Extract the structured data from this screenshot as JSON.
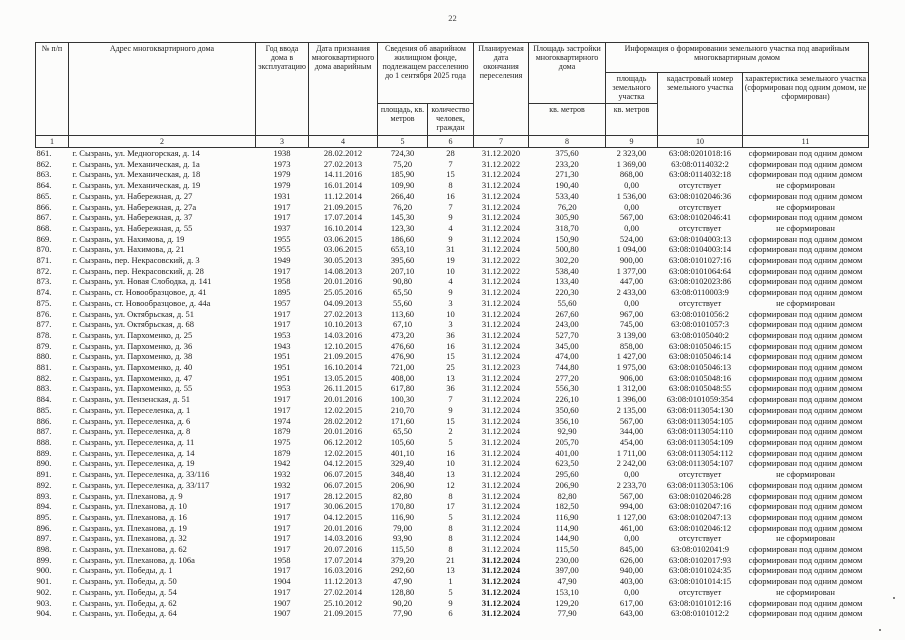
{
  "page": {
    "number": "22"
  },
  "table": {
    "headers": {
      "num": "№ п/п",
      "address": "Адрес многоквартирного дома",
      "year_built": "Год ввода дома в эксплуатацию",
      "date_recognized": "Дата признания многоквартирного дома аварийным",
      "fund_group": "Сведения об аварийном жилищном фонде, подлежащем расселению до 1 сентября 2025 года",
      "fund_area": "площадь, кв. метров",
      "fund_people": "количество человек, граждан",
      "plan_date": "Планируемая дата окончания переселения",
      "building_area": "Площадь застройки многоквартирного дома",
      "building_area_unit": "кв. метров",
      "land_group": "Информация о формировании земельного участка под аварийным многоквартирным домом",
      "land_area": "площадь земельного участка",
      "land_area_unit": "кв. метров",
      "cadastral_number": "кадастровый номер земельного участка",
      "land_status": "характеристика земельного участка (сформирован под одним домом, не сформирован)"
    },
    "numbering_row": [
      "1",
      "2",
      "3",
      "4",
      "5",
      "6",
      "7",
      "8",
      "9",
      "10",
      "11"
    ],
    "column_keys": [
      "num",
      "address",
      "year_built",
      "date_recognized",
      "area_sqm",
      "people_count",
      "plan_date",
      "building_area",
      "land_area",
      "cadastral_number",
      "land_status"
    ],
    "bold_plan_date_rows": [
      "899.",
      "900.",
      "901.",
      "902.",
      "903.",
      "904."
    ],
    "rows": [
      [
        "861.",
        "г. Сызрань, ул. Медногорская, д. 14",
        "1938",
        "28.02.2012",
        "724,30",
        "28",
        "31.12.2020",
        "375,60",
        "2 323,00",
        "63:08:0201018:16",
        "сформирован под одним домом"
      ],
      [
        "862.",
        "г. Сызрань, ул. Механическая, д. 1а",
        "1973",
        "27.02.2013",
        "75,20",
        "7",
        "31.12.2022",
        "233,20",
        "1 369,00",
        "63:08:0114032:2",
        "сформирован под одним домом"
      ],
      [
        "863.",
        "г. Сызрань, ул. Механическая, д. 18",
        "1979",
        "14.11.2016",
        "185,90",
        "15",
        "31.12.2024",
        "271,30",
        "868,00",
        "63:08:0114032:18",
        "сформирован под одним домом"
      ],
      [
        "864.",
        "г. Сызрань, ул. Механическая, д. 19",
        "1979",
        "16.01.2014",
        "109,90",
        "8",
        "31.12.2024",
        "190,40",
        "0,00",
        "отсутствует",
        "не сформирован"
      ],
      [
        "865.",
        "г. Сызрань, ул. Набережная, д. 27",
        "1931",
        "11.12.2014",
        "266,40",
        "16",
        "31.12.2024",
        "533,40",
        "1 536,00",
        "63:08:0102046:36",
        "сформирован под одним домом"
      ],
      [
        "866.",
        "г. Сызрань, ул. Набережная, д. 27а",
        "1917",
        "21.09.2015",
        "76,20",
        "7",
        "31.12.2024",
        "76,20",
        "0,00",
        "отсутствует",
        "не сформирован"
      ],
      [
        "867.",
        "г. Сызрань, ул. Набережная, д. 37",
        "1917",
        "17.07.2014",
        "145,30",
        "9",
        "31.12.2024",
        "305,90",
        "567,00",
        "63:08:0102046:41",
        "сформирован под одним домом"
      ],
      [
        "868.",
        "г. Сызрань, ул. Набережная, д. 55",
        "1937",
        "16.10.2014",
        "123,30",
        "4",
        "31.12.2024",
        "318,70",
        "0,00",
        "отсутствует",
        "не сформирован"
      ],
      [
        "869.",
        "г. Сызрань, ул. Нахимова, д. 19",
        "1955",
        "03.06.2015",
        "186,60",
        "9",
        "31.12.2024",
        "150,90",
        "524,00",
        "63:08:0104003:13",
        "сформирован под одним домом"
      ],
      [
        "870.",
        "г. Сызрань, ул. Нахимова, д. 21",
        "1955",
        "03.06.2015",
        "653,10",
        "31",
        "31.12.2024",
        "500,80",
        "1 094,00",
        "63:08:0104003:14",
        "сформирован под одним домом"
      ],
      [
        "871.",
        "г. Сызрань, пер. Некрасовский, д. 3",
        "1949",
        "30.05.2013",
        "395,60",
        "19",
        "31.12.2022",
        "302,20",
        "900,00",
        "63:08:0101027:16",
        "сформирован под одним домом"
      ],
      [
        "872.",
        "г. Сызрань, пер. Некрасовский, д. 28",
        "1917",
        "14.08.2013",
        "207,10",
        "10",
        "31.12.2022",
        "538,40",
        "1 377,00",
        "63:08:0101064:64",
        "сформирован под одним домом"
      ],
      [
        "873.",
        "г. Сызрань, ул. Новая Слободка, д. 141",
        "1958",
        "20.01.2016",
        "90,80",
        "4",
        "31.12.2024",
        "133,40",
        "447,00",
        "63:08:0102023:86",
        "сформирован под одним домом"
      ],
      [
        "874.",
        "г. Сызрань, ст. Новообразцовое, д. 41",
        "1895",
        "25.05.2016",
        "65,50",
        "9",
        "31.12.2024",
        "220,30",
        "2 433,00",
        "63:08:0110003:9",
        "сформирован под одним домом"
      ],
      [
        "875.",
        "г. Сызрань, ст. Новообразцовое, д. 44а",
        "1957",
        "04.09.2013",
        "55,60",
        "3",
        "31.12.2024",
        "55,60",
        "0,00",
        "отсутствует",
        "не сформирован"
      ],
      [
        "876.",
        "г. Сызрань, ул. Октябрьская, д. 51",
        "1917",
        "27.02.2013",
        "113,60",
        "10",
        "31.12.2024",
        "267,60",
        "967,00",
        "63:08:0101056:2",
        "сформирован под одним домом"
      ],
      [
        "877.",
        "г. Сызрань, ул. Октябрьская, д. 68",
        "1917",
        "10.10.2013",
        "67,10",
        "3",
        "31.12.2024",
        "243,00",
        "745,00",
        "63:08:0101057:3",
        "сформирован под одним домом"
      ],
      [
        "878.",
        "г. Сызрань, ул. Пархоменко, д. 25",
        "1953",
        "14.03.2016",
        "473,20",
        "36",
        "31.12.2024",
        "527,70",
        "3 139,00",
        "63:08:0105040:2",
        "сформирован под одним домом"
      ],
      [
        "879.",
        "г. Сызрань, ул. Пархоменко, д. 36",
        "1943",
        "12.10.2015",
        "476,60",
        "16",
        "31.12.2024",
        "345,00",
        "858,00",
        "63:08:0105046:15",
        "сформирован под одним домом"
      ],
      [
        "880.",
        "г. Сызрань, ул. Пархоменко, д. 38",
        "1951",
        "21.09.2015",
        "476,90",
        "15",
        "31.12.2024",
        "474,00",
        "1 427,00",
        "63:08:0105046:14",
        "сформирован под одним домом"
      ],
      [
        "881.",
        "г. Сызрань, ул. Пархоменко, д. 40",
        "1951",
        "16.10.2014",
        "721,00",
        "25",
        "31.12.2023",
        "744,80",
        "1 975,00",
        "63:08:0105046:13",
        "сформирован под одним домом"
      ],
      [
        "882.",
        "г. Сызрань, ул. Пархоменко, д. 47",
        "1951",
        "13.05.2015",
        "408,00",
        "13",
        "31.12.2024",
        "277,20",
        "906,00",
        "63:08:0105048:16",
        "сформирован под одним домом"
      ],
      [
        "883.",
        "г. Сызрань, ул. Пархоменко, д. 55",
        "1953",
        "26.11.2015",
        "617,80",
        "36",
        "31.12.2024",
        "556,30",
        "1 312,00",
        "63:08:0105048:55",
        "сформирован под одним домом"
      ],
      [
        "884.",
        "г. Сызрань, ул. Пензенская, д. 51",
        "1917",
        "20.01.2016",
        "100,30",
        "7",
        "31.12.2024",
        "226,10",
        "1 396,00",
        "63:08:0101059:354",
        "сформирован под одним домом"
      ],
      [
        "885.",
        "г. Сызрань, ул. Переселенка, д. 1",
        "1917",
        "12.02.2015",
        "210,70",
        "9",
        "31.12.2024",
        "350,60",
        "2 135,00",
        "63:08:0113054:130",
        "сформирован под одним домом"
      ],
      [
        "886.",
        "г. Сызрань, ул. Переселенка, д. 6",
        "1974",
        "28.02.2012",
        "171,60",
        "15",
        "31.12.2024",
        "356,10",
        "567,00",
        "63:08:0113054:105",
        "сформирован под одним домом"
      ],
      [
        "887.",
        "г. Сызрань, ул. Переселенка, д. 8",
        "1879",
        "20.01.2016",
        "65,50",
        "2",
        "31.12.2024",
        "92,90",
        "344,00",
        "63:08:0113054:110",
        "сформирован под одним домом"
      ],
      [
        "888.",
        "г. Сызрань, ул. Переселенка, д. 11",
        "1975",
        "06.12.2012",
        "105,60",
        "5",
        "31.12.2024",
        "205,70",
        "454,00",
        "63:08:0113054:109",
        "сформирован под одним домом"
      ],
      [
        "889.",
        "г. Сызрань, ул. Переселенка, д. 14",
        "1879",
        "12.02.2015",
        "401,10",
        "16",
        "31.12.2024",
        "401,00",
        "1 711,00",
        "63:08:0113054:112",
        "сформирован под одним домом"
      ],
      [
        "890.",
        "г. Сызрань, ул. Переселенка, д. 19",
        "1942",
        "04.12.2015",
        "329,40",
        "10",
        "31.12.2024",
        "623,50",
        "2 242,00",
        "63:08:0113054:107",
        "сформирован под одним домом"
      ],
      [
        "891.",
        "г. Сызрань, ул. Переселенка, д. 33/116",
        "1932",
        "06.07.2015",
        "348,40",
        "13",
        "31.12.2024",
        "295,60",
        "0,00",
        "отсутствует",
        "не сформирован"
      ],
      [
        "892.",
        "г. Сызрань, ул. Переселенка, д. 33/117",
        "1932",
        "06.07.2015",
        "206,90",
        "12",
        "31.12.2024",
        "206,90",
        "2 233,70",
        "63:08:0113053:106",
        "сформирован под одним домом"
      ],
      [
        "893.",
        "г. Сызрань, ул. Плеханова, д. 9",
        "1917",
        "28.12.2015",
        "82,80",
        "8",
        "31.12.2024",
        "82,80",
        "567,00",
        "63:08:0102046:28",
        "сформирован под одним домом"
      ],
      [
        "894.",
        "г. Сызрань, ул. Плеханова, д. 10",
        "1917",
        "30.06.2015",
        "170,80",
        "17",
        "31.12.2024",
        "182,50",
        "994,00",
        "63:08:0102047:16",
        "сформирован под одним домом"
      ],
      [
        "895.",
        "г. Сызрань, ул. Плеханова, д. 16",
        "1917",
        "04.12.2015",
        "116,90",
        "5",
        "31.12.2024",
        "116,90",
        "1 127,00",
        "63:08:0102047:13",
        "сформирован под одним домом"
      ],
      [
        "896.",
        "г. Сызрань, ул. Плеханова, д. 19",
        "1917",
        "20.01.2016",
        "79,00",
        "8",
        "31.12.2024",
        "114,90",
        "461,00",
        "63:08:0102046:12",
        "сформирован под одним домом"
      ],
      [
        "897.",
        "г. Сызрань, ул. Плеханова, д. 32",
        "1917",
        "14.03.2016",
        "93,90",
        "8",
        "31.12.2024",
        "144,90",
        "0,00",
        "отсутствует",
        "не сформирован"
      ],
      [
        "898.",
        "г. Сызрань, ул. Плеханова, д. 62",
        "1917",
        "20.07.2016",
        "115,50",
        "8",
        "31.12.2024",
        "115,50",
        "845,00",
        "63:08:0102041:9",
        "сформирован под одним домом"
      ],
      [
        "899.",
        "г. Сызрань, ул. Плеханова, д. 106а",
        "1958",
        "17.07.2014",
        "379,20",
        "21",
        "31.12.2024",
        "230,00",
        "626,00",
        "63:08:0102017:93",
        "сформирован под одним домом"
      ],
      [
        "900.",
        "г. Сызрань, ул. Победы, д. 1",
        "1917",
        "16.03.2016",
        "292,60",
        "13",
        "31.12.2024",
        "397,00",
        "940,00",
        "63:08:0101024:35",
        "сформирован под одним домом"
      ],
      [
        "901.",
        "г. Сызрань, ул. Победы, д. 50",
        "1904",
        "11.12.2013",
        "47,90",
        "1",
        "31.12.2024",
        "47,90",
        "403,00",
        "63:08:0101014:15",
        "сформирован под одним домом"
      ],
      [
        "902.",
        "г. Сызрань, ул. Победы, д. 54",
        "1917",
        "27.02.2014",
        "128,80",
        "5",
        "31.12.2024",
        "153,10",
        "0,00",
        "отсутствует",
        "не сформирован"
      ],
      [
        "903.",
        "г. Сызрань, ул. Победы, д. 62",
        "1907",
        "25.10.2012",
        "90,20",
        "9",
        "31.12.2024",
        "129,20",
        "617,00",
        "63:08:0101012:16",
        "сформирован под одним домом"
      ],
      [
        "904.",
        "г. Сызрань, ул. Победы, д. 64",
        "1907",
        "21.09.2015",
        "77,90",
        "6",
        "31.12.2024",
        "77,90",
        "643,00",
        "63:08:0101012:2",
        "сформирован под одним домом"
      ]
    ]
  }
}
